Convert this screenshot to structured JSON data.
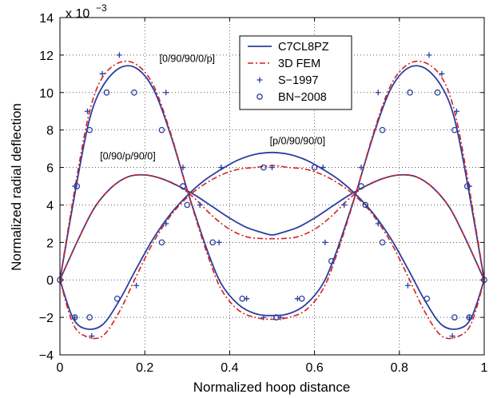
{
  "chart_data": {
    "type": "line",
    "xlabel": "Normalized hoop distance",
    "ylabel": "Normalized radial deflection",
    "y_exponent": {
      "base": "x 10",
      "power": "−3"
    },
    "xlim": [
      0,
      1
    ],
    "ylim": [
      -4,
      14
    ],
    "x_ticks": [
      0,
      0.2,
      0.4,
      0.6,
      0.8,
      1
    ],
    "x_tick_labels": [
      "0",
      "0.2",
      "0.4",
      "0.6",
      "0.8",
      "1"
    ],
    "y_ticks": [
      -4,
      -2,
      0,
      2,
      4,
      6,
      8,
      10,
      12,
      14
    ],
    "y_tick_labels": [
      "−4",
      "−2",
      "0",
      "2",
      "4",
      "6",
      "8",
      "10",
      "12",
      "14"
    ],
    "grid": true,
    "legend_position": "top-center",
    "annotations": [
      {
        "text": "[0/90/90/0/p]",
        "x": 0.3,
        "y": 11.8
      },
      {
        "text": "[p/0/90/90/0]",
        "x": 0.56,
        "y": 7.4
      },
      {
        "text": "[0/90/p/90/0]",
        "x": 0.16,
        "y": 6.6
      }
    ],
    "series": [
      {
        "name": "C7CL8PZ",
        "style": "solid",
        "color": "#2b3f9e",
        "curves": [
          {
            "label": "[0/90/90/0/p]",
            "x": [
              0,
              0.04,
              0.07,
              0.1,
              0.14,
              0.18,
              0.22,
              0.26,
              0.3,
              0.32,
              0.35,
              0.38,
              0.42,
              0.46,
              0.5,
              0.54,
              0.58,
              0.62,
              0.65,
              0.68,
              0.7,
              0.74,
              0.78,
              0.82,
              0.86,
              0.9,
              0.93,
              0.96,
              1
            ],
            "y": [
              0,
              5.2,
              8.6,
              10.3,
              11.3,
              11.3,
              10.2,
              7.8,
              4.8,
              3.4,
              1.4,
              -0.2,
              -1.3,
              -1.8,
              -1.9,
              -1.8,
              -1.3,
              -0.2,
              1.4,
              3.4,
              4.8,
              7.8,
              10.2,
              11.3,
              11.3,
              10.3,
              8.6,
              5.2,
              0
            ]
          },
          {
            "label": "[p/0/90/90/0]",
            "x": [
              0,
              0.03,
              0.06,
              0.1,
              0.14,
              0.18,
              0.22,
              0.26,
              0.3,
              0.34,
              0.38,
              0.42,
              0.46,
              0.5,
              0.54,
              0.58,
              0.62,
              0.66,
              0.7,
              0.74,
              0.78,
              0.82,
              0.86,
              0.9,
              0.94,
              0.97,
              1
            ],
            "y": [
              0,
              -2.0,
              -2.6,
              -2.4,
              -1.1,
              0.6,
              2.2,
              3.5,
              4.5,
              5.3,
              5.9,
              6.4,
              6.7,
              6.8,
              6.7,
              6.4,
              5.9,
              5.3,
              4.5,
              3.5,
              2.2,
              0.6,
              -1.1,
              -2.4,
              -2.6,
              -2.0,
              0
            ]
          },
          {
            "label": "[0/90/p/90/0]",
            "x": [
              0,
              0.04,
              0.08,
              0.12,
              0.16,
              0.2,
              0.24,
              0.28,
              0.32,
              0.36,
              0.4,
              0.44,
              0.48,
              0.5,
              0.52,
              0.56,
              0.6,
              0.64,
              0.68,
              0.72,
              0.76,
              0.8,
              0.84,
              0.88,
              0.92,
              0.96,
              1
            ],
            "y": [
              0,
              2.0,
              3.8,
              4.9,
              5.5,
              5.6,
              5.4,
              5.0,
              4.5,
              3.9,
              3.3,
              2.8,
              2.5,
              2.4,
              2.5,
              2.8,
              3.3,
              3.9,
              4.5,
              5.0,
              5.4,
              5.6,
              5.5,
              4.9,
              3.8,
              2.0,
              0
            ]
          }
        ]
      },
      {
        "name": "3D FEM",
        "style": "dashdot",
        "color": "#d62020",
        "curves": [
          {
            "label": "[0/90/90/0/p]",
            "x": [
              0,
              0.04,
              0.07,
              0.1,
              0.14,
              0.18,
              0.22,
              0.26,
              0.3,
              0.32,
              0.35,
              0.38,
              0.42,
              0.46,
              0.5,
              0.54,
              0.58,
              0.62,
              0.65,
              0.68,
              0.7,
              0.74,
              0.78,
              0.82,
              0.86,
              0.9,
              0.93,
              0.96,
              1
            ],
            "y": [
              0,
              5.5,
              9.0,
              10.8,
              11.6,
              11.5,
              10.4,
              7.9,
              4.8,
              3.3,
              1.2,
              -0.5,
              -1.6,
              -2.0,
              -2.1,
              -2.0,
              -1.6,
              -0.5,
              1.2,
              3.3,
              4.8,
              7.9,
              10.4,
              11.5,
              11.6,
              10.8,
              9.0,
              5.5,
              0
            ]
          },
          {
            "label": "[p/0/90/90/0]",
            "x": [
              0,
              0.03,
              0.06,
              0.1,
              0.14,
              0.18,
              0.22,
              0.26,
              0.3,
              0.34,
              0.38,
              0.42,
              0.46,
              0.5,
              0.54,
              0.58,
              0.62,
              0.66,
              0.7,
              0.74,
              0.78,
              0.82,
              0.86,
              0.9,
              0.94,
              0.97,
              1
            ],
            "y": [
              0,
              -2.3,
              -3.0,
              -3.0,
              -1.7,
              0.2,
              2.0,
              3.4,
              4.4,
              5.1,
              5.6,
              5.9,
              6.0,
              6.1,
              6.0,
              5.9,
              5.6,
              5.1,
              4.4,
              3.4,
              2.0,
              0.2,
              -1.7,
              -3.0,
              -3.0,
              -2.3,
              0
            ]
          },
          {
            "label": "[0/90/p/90/0]",
            "x": [
              0,
              0.04,
              0.08,
              0.12,
              0.16,
              0.2,
              0.24,
              0.28,
              0.32,
              0.36,
              0.4,
              0.44,
              0.48,
              0.5,
              0.52,
              0.56,
              0.6,
              0.64,
              0.68,
              0.72,
              0.76,
              0.8,
              0.84,
              0.88,
              0.92,
              0.96,
              1
            ],
            "y": [
              0,
              2.0,
              3.8,
              4.9,
              5.5,
              5.6,
              5.4,
              5.0,
              4.3,
              3.4,
              2.7,
              2.3,
              2.2,
              2.2,
              2.2,
              2.3,
              2.7,
              3.4,
              4.3,
              5.0,
              5.4,
              5.6,
              5.5,
              4.9,
              3.8,
              2.0,
              0
            ]
          }
        ]
      },
      {
        "name": "S−1997",
        "style": "plus",
        "color": "#2b3f9e",
        "points": [
          [
            0.035,
            5.0
          ],
          [
            0.065,
            9.0
          ],
          [
            0.1,
            11.0
          ],
          [
            0.14,
            12.0
          ],
          [
            0.25,
            10.0
          ],
          [
            0.29,
            6.0
          ],
          [
            0.33,
            4.0
          ],
          [
            0.375,
            2.0
          ],
          [
            0.44,
            -1.0
          ],
          [
            0.48,
            -2.0
          ],
          [
            0.52,
            -2.0
          ],
          [
            0.56,
            -1.0
          ],
          [
            0.625,
            2.0
          ],
          [
            0.67,
            4.0
          ],
          [
            0.71,
            6.0
          ],
          [
            0.75,
            10.0
          ],
          [
            0.87,
            12.0
          ],
          [
            0.9,
            11.0
          ],
          [
            0.935,
            9.0
          ],
          [
            0.965,
            5.0
          ],
          [
            0.035,
            -2.0
          ],
          [
            0.075,
            -3.0
          ],
          [
            0.18,
            -0.3
          ],
          [
            0.25,
            3.0
          ],
          [
            0.38,
            6.0
          ],
          [
            0.5,
            6.0
          ],
          [
            0.62,
            6.0
          ],
          [
            0.75,
            3.0
          ],
          [
            0.82,
            -0.3
          ],
          [
            0.925,
            -3.0
          ],
          [
            0.965,
            -2.0
          ]
        ]
      },
      {
        "name": "BN−2008",
        "style": "circle",
        "color": "#2b3f9e",
        "points": [
          [
            0,
            0
          ],
          [
            0.04,
            5.0
          ],
          [
            0.07,
            8.0
          ],
          [
            0.11,
            10.0
          ],
          [
            0.175,
            10.0
          ],
          [
            0.24,
            8.0
          ],
          [
            0.29,
            5.0
          ],
          [
            0.36,
            2.0
          ],
          [
            0.43,
            -1.0
          ],
          [
            0.51,
            -2.0
          ],
          [
            0.57,
            -1.0
          ],
          [
            0.64,
            1.0
          ],
          [
            0.71,
            5.0
          ],
          [
            0.76,
            8.0
          ],
          [
            0.825,
            10.0
          ],
          [
            0.89,
            10.0
          ],
          [
            0.93,
            8.0
          ],
          [
            0.96,
            5.0
          ],
          [
            1,
            0
          ],
          [
            0.035,
            -2.0
          ],
          [
            0.07,
            -2.0
          ],
          [
            0.135,
            -1.0
          ],
          [
            0.24,
            2.0
          ],
          [
            0.3,
            4.0
          ],
          [
            0.48,
            6.0
          ],
          [
            0.6,
            6.0
          ],
          [
            0.72,
            4.0
          ],
          [
            0.76,
            2.0
          ],
          [
            0.865,
            -1.0
          ],
          [
            0.93,
            -2.0
          ],
          [
            0.965,
            -2.0
          ]
        ]
      }
    ]
  }
}
